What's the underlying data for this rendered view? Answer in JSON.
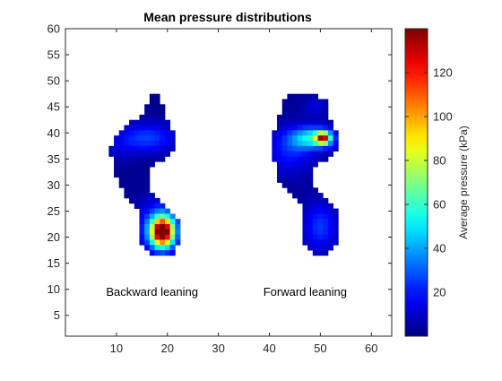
{
  "chart_data": {
    "type": "heatmap",
    "title": "Mean pressure distributions",
    "xlim": [
      0,
      64
    ],
    "ylim": [
      1,
      60
    ],
    "xticks": [
      10,
      20,
      30,
      40,
      50,
      60
    ],
    "yticks": [
      5,
      10,
      15,
      20,
      25,
      30,
      35,
      40,
      45,
      50,
      55,
      60
    ],
    "grid": false,
    "colormap": "jet",
    "colorbar": {
      "label": "Average pressure (kPa)",
      "range": [
        0,
        140
      ],
      "ticks": [
        20,
        40,
        60,
        80,
        100,
        120
      ]
    },
    "annotations": [
      {
        "text": "Backward leaning",
        "x": 17,
        "y": 9.5
      },
      {
        "text": "Forward leaning",
        "x": 47,
        "y": 9.5
      }
    ],
    "footprints": [
      {
        "label": "Backward leaning",
        "rows": [
          {
            "y": 47,
            "x0": 17,
            "x1": 18
          },
          {
            "y": 46,
            "x0": 17,
            "x1": 18
          },
          {
            "y": 45,
            "x0": 16,
            "x1": 19
          },
          {
            "y": 44,
            "x0": 16,
            "x1": 19
          },
          {
            "y": 43,
            "x0": 15,
            "x1": 19
          },
          {
            "y": 42,
            "x0": 13,
            "x1": 20
          },
          {
            "y": 41,
            "x0": 12,
            "x1": 20
          },
          {
            "y": 40,
            "x0": 11,
            "x1": 21
          },
          {
            "y": 39,
            "x0": 10,
            "x1": 21
          },
          {
            "y": 38,
            "x0": 10,
            "x1": 21
          },
          {
            "y": 37,
            "x0": 9,
            "x1": 21
          },
          {
            "y": 36,
            "x0": 9,
            "x1": 20
          },
          {
            "y": 35,
            "x0": 10,
            "x1": 19
          },
          {
            "y": 34,
            "x0": 10,
            "x1": 17
          },
          {
            "y": 33,
            "x0": 10,
            "x1": 16
          },
          {
            "y": 32,
            "x0": 10,
            "x1": 16
          },
          {
            "y": 31,
            "x0": 11,
            "x1": 16
          },
          {
            "y": 30,
            "x0": 11,
            "x1": 16
          },
          {
            "y": 29,
            "x0": 12,
            "x1": 16
          },
          {
            "y": 28,
            "x0": 12,
            "x1": 17
          },
          {
            "y": 27,
            "x0": 13,
            "x1": 18
          },
          {
            "y": 26,
            "x0": 14,
            "x1": 19
          },
          {
            "y": 25,
            "x0": 15,
            "x1": 20
          },
          {
            "y": 24,
            "x0": 15,
            "x1": 21
          },
          {
            "y": 23,
            "x0": 15,
            "x1": 22
          },
          {
            "y": 22,
            "x0": 15,
            "x1": 22
          },
          {
            "y": 21,
            "x0": 15,
            "x1": 22
          },
          {
            "y": 20,
            "x0": 15,
            "x1": 22
          },
          {
            "y": 19,
            "x0": 15,
            "x1": 22
          },
          {
            "y": 18,
            "x0": 16,
            "x1": 21
          },
          {
            "y": 17,
            "x0": 17,
            "x1": 21
          }
        ],
        "peaks": [
          {
            "x": 19,
            "y": 21,
            "peak": 140,
            "sx": 1.5,
            "sy": 1.9
          },
          {
            "x": 18.5,
            "y": 22,
            "peak": 30,
            "sx": 3.0,
            "sy": 3.5
          },
          {
            "x": 16,
            "y": 39,
            "peak": 24,
            "sx": 4.0,
            "sy": 2.0
          },
          {
            "x": 11,
            "y": 37,
            "peak": 6,
            "sx": 2.0,
            "sy": 2.0
          }
        ],
        "base": 2
      },
      {
        "label": "Forward leaning",
        "rows": [
          {
            "y": 47,
            "x0": 44,
            "x1": 49
          },
          {
            "y": 46,
            "x0": 43,
            "x1": 51
          },
          {
            "y": 45,
            "x0": 43,
            "x1": 51
          },
          {
            "y": 44,
            "x0": 43,
            "x1": 51
          },
          {
            "y": 43,
            "x0": 42,
            "x1": 51
          },
          {
            "y": 42,
            "x0": 42,
            "x1": 52
          },
          {
            "y": 41,
            "x0": 42,
            "x1": 52
          },
          {
            "y": 40,
            "x0": 41,
            "x1": 53
          },
          {
            "y": 39,
            "x0": 41,
            "x1": 53
          },
          {
            "y": 38,
            "x0": 41,
            "x1": 53
          },
          {
            "y": 37,
            "x0": 41,
            "x1": 53
          },
          {
            "y": 36,
            "x0": 41,
            "x1": 52
          },
          {
            "y": 35,
            "x0": 41,
            "x1": 51
          },
          {
            "y": 34,
            "x0": 42,
            "x1": 49
          },
          {
            "y": 33,
            "x0": 42,
            "x1": 48
          },
          {
            "y": 32,
            "x0": 42,
            "x1": 48
          },
          {
            "y": 31,
            "x0": 42,
            "x1": 48
          },
          {
            "y": 30,
            "x0": 43,
            "x1": 48
          },
          {
            "y": 29,
            "x0": 44,
            "x1": 49
          },
          {
            "y": 28,
            "x0": 45,
            "x1": 50
          },
          {
            "y": 27,
            "x0": 46,
            "x1": 51
          },
          {
            "y": 26,
            "x0": 47,
            "x1": 52
          },
          {
            "y": 25,
            "x0": 47,
            "x1": 53
          },
          {
            "y": 24,
            "x0": 47,
            "x1": 53
          },
          {
            "y": 23,
            "x0": 47,
            "x1": 53
          },
          {
            "y": 22,
            "x0": 47,
            "x1": 53
          },
          {
            "y": 21,
            "x0": 47,
            "x1": 53
          },
          {
            "y": 20,
            "x0": 47,
            "x1": 53
          },
          {
            "y": 19,
            "x0": 47,
            "x1": 53
          },
          {
            "y": 18,
            "x0": 48,
            "x1": 52
          },
          {
            "y": 17,
            "x0": 49,
            "x1": 51
          }
        ],
        "peaks": [
          {
            "x": 50.5,
            "y": 39,
            "peak": 102,
            "sx": 1.0,
            "sy": 0.8
          },
          {
            "x": 48.5,
            "y": 39,
            "peak": 48,
            "sx": 3.0,
            "sy": 1.5
          },
          {
            "x": 44,
            "y": 36.5,
            "peak": 18,
            "sx": 3.0,
            "sy": 3.0
          },
          {
            "x": 50,
            "y": 22,
            "peak": 22,
            "sx": 2.2,
            "sy": 3.2
          },
          {
            "x": 49,
            "y": 45,
            "peak": 10,
            "sx": 1.5,
            "sy": 1.2
          }
        ],
        "base": 3
      }
    ]
  }
}
